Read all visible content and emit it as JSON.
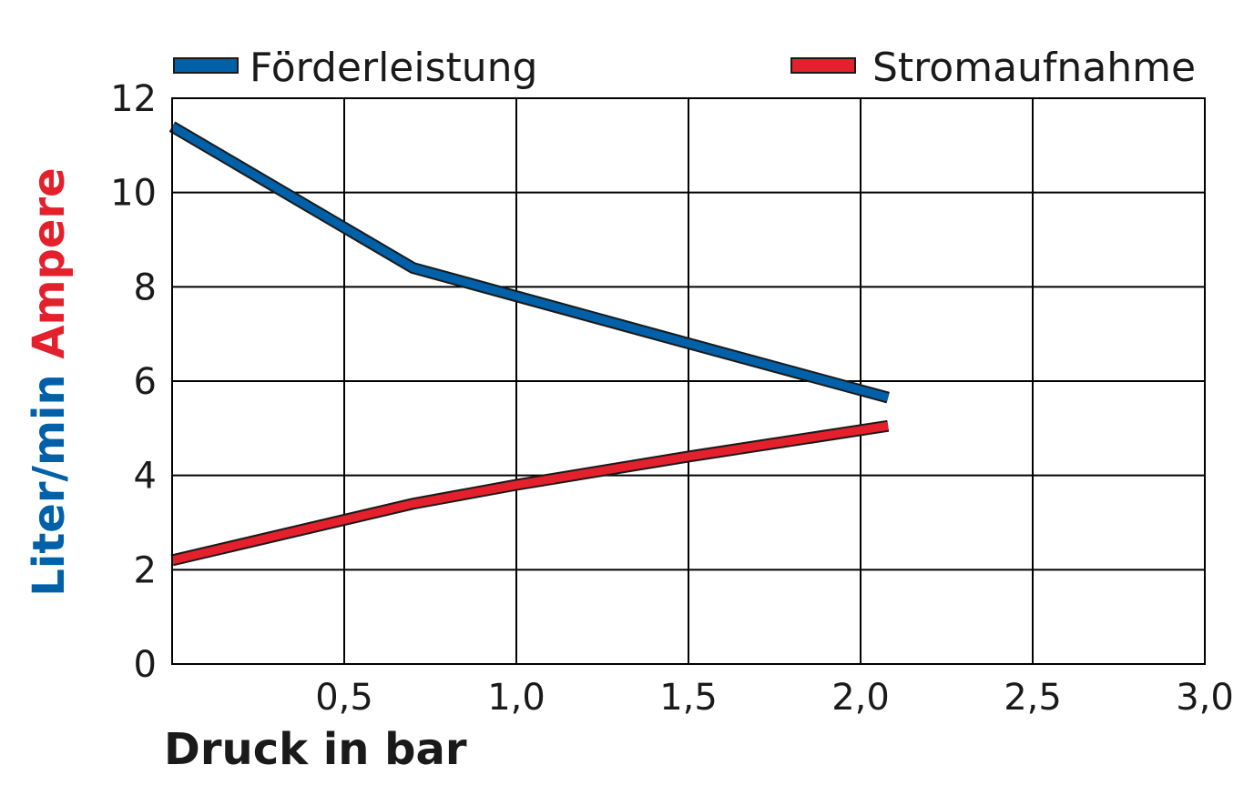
{
  "chart_data": {
    "type": "line",
    "xlabel": "Druck in bar",
    "ylabel_parts": [
      {
        "text": "Liter/min",
        "color": "#0060a8"
      },
      {
        "text": "Ampere",
        "color": "#e3202b"
      }
    ],
    "xlim": [
      0,
      3.0
    ],
    "ylim": [
      0,
      12
    ],
    "xticks": [
      0.5,
      1.0,
      1.5,
      2.0,
      2.5,
      3.0
    ],
    "xtick_labels": [
      "0,5",
      "1,0",
      "1,5",
      "2,0",
      "2,5",
      "3,0"
    ],
    "yticks": [
      0,
      2,
      4,
      6,
      8,
      10,
      12
    ],
    "ytick_labels": [
      "0",
      "2",
      "4",
      "6",
      "8",
      "10",
      "12"
    ],
    "grid": true,
    "legend_position": "top",
    "series": [
      {
        "name": "Förderleistung",
        "color": "#0060a8",
        "x": [
          0,
          0.7,
          1.0,
          1.5,
          2.08
        ],
        "y": [
          11.4,
          8.4,
          7.8,
          6.8,
          5.65
        ]
      },
      {
        "name": "Stromaufnahme",
        "color": "#e3202b",
        "x": [
          0,
          0.7,
          1.0,
          1.5,
          2.08
        ],
        "y": [
          2.2,
          3.4,
          3.8,
          4.4,
          5.05
        ]
      }
    ]
  }
}
